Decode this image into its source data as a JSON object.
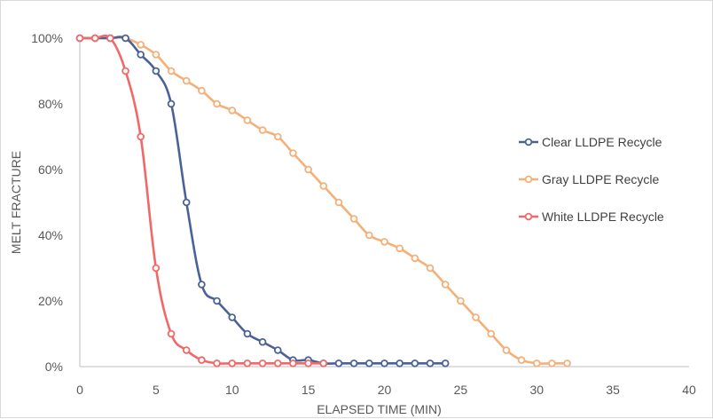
{
  "chart_data": {
    "type": "line",
    "title": "",
    "xlabel": "ELAPSED TIME (MIN)",
    "ylabel": "MELT FRACTURE",
    "xlim": [
      0,
      40
    ],
    "ylim": [
      0,
      100
    ],
    "x_ticks": [
      "0",
      "5",
      "10",
      "15",
      "20",
      "25",
      "30",
      "35",
      "40"
    ],
    "y_ticks": [
      "0%",
      "20%",
      "40%",
      "60%",
      "80%",
      "100%"
    ],
    "grid": false,
    "legend_position": "right",
    "series": [
      {
        "name": "Clear LLDPE Recycle",
        "color": "#4a6298",
        "x": [
          0,
          1,
          2,
          3,
          4,
          5,
          6,
          7,
          8,
          9,
          10,
          11,
          12,
          13,
          14,
          15,
          16,
          17,
          18,
          19,
          20,
          21,
          22,
          23,
          24
        ],
        "y": [
          100,
          100,
          100,
          100,
          95,
          90,
          80,
          50,
          25,
          20,
          15,
          10,
          7.5,
          5,
          2,
          2,
          1,
          1,
          1,
          1,
          1,
          1,
          1,
          1,
          1
        ]
      },
      {
        "name": "Gray LLDPE Recycle",
        "color": "#f4b079",
        "x": [
          0,
          1,
          2,
          3,
          4,
          5,
          6,
          7,
          8,
          9,
          10,
          11,
          12,
          13,
          14,
          15,
          16,
          17,
          18,
          19,
          20,
          21,
          22,
          23,
          24,
          25,
          26,
          27,
          28,
          29,
          30,
          31,
          32
        ],
        "y": [
          100,
          100,
          100,
          100,
          98,
          95,
          90,
          87,
          84,
          80,
          78,
          75,
          72,
          70,
          65,
          60,
          55,
          50,
          45,
          40,
          38,
          36,
          33,
          30,
          25,
          20,
          15,
          10,
          5,
          2,
          1,
          1,
          1
        ]
      },
      {
        "name": "White LLDPE Recycle",
        "color": "#f26868",
        "x": [
          0,
          1,
          2,
          3,
          4,
          5,
          6,
          7,
          8,
          9,
          10,
          11,
          12,
          13,
          14,
          15,
          16
        ],
        "y": [
          100,
          100,
          100,
          90,
          70,
          30,
          10,
          5,
          2,
          1,
          1,
          1,
          1,
          1,
          1,
          1,
          1
        ]
      }
    ]
  }
}
